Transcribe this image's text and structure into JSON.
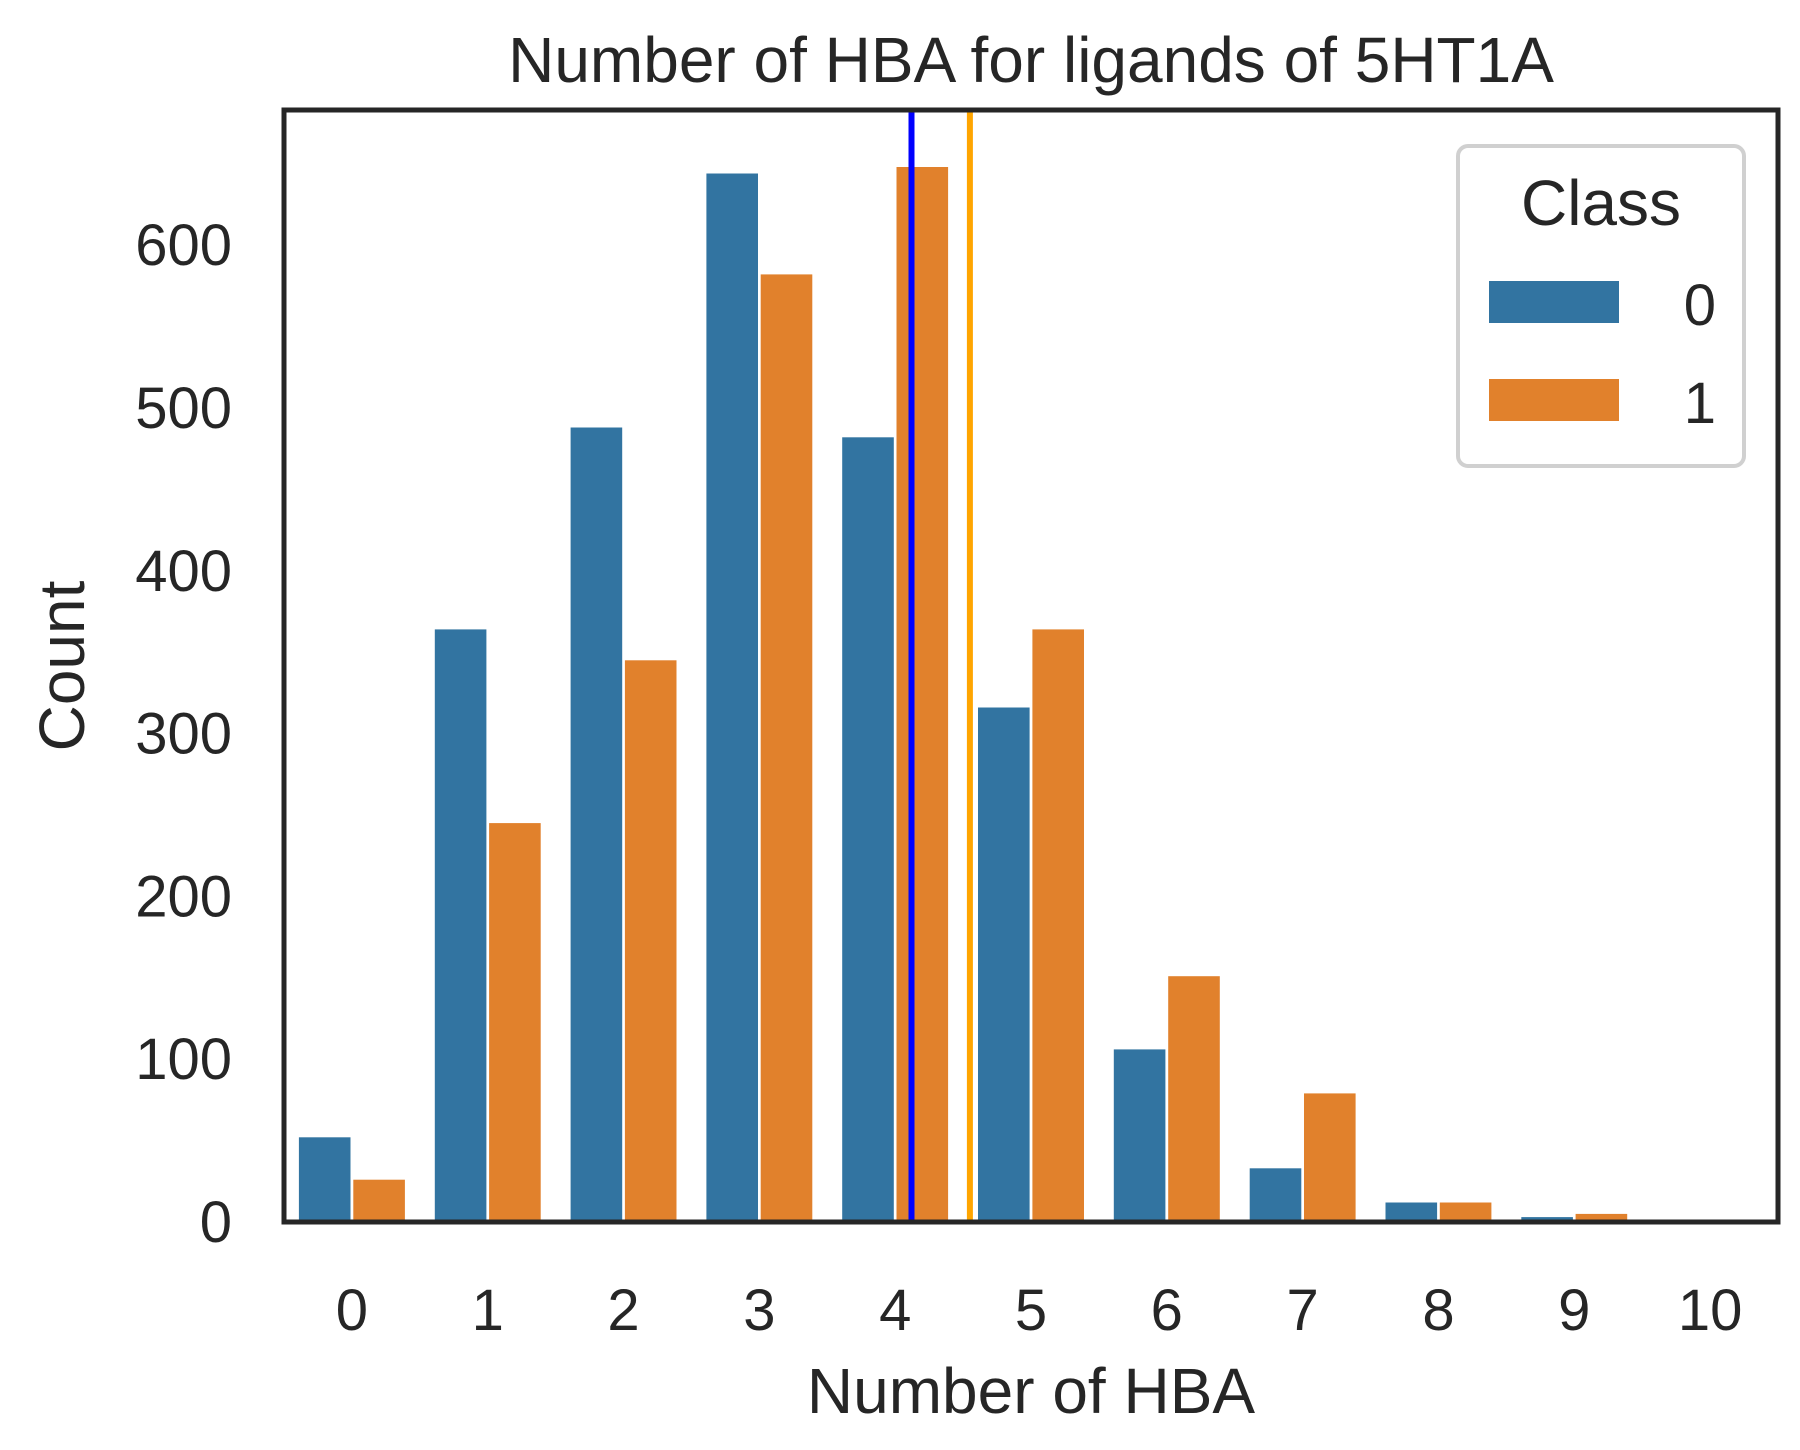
{
  "chart_data": {
    "type": "bar",
    "title": "Number of HBA for ligands of 5HT1A",
    "xlabel": "Number of HBA",
    "ylabel": "Count",
    "categories": [
      "0",
      "1",
      "2",
      "3",
      "4",
      "5",
      "6",
      "7",
      "8",
      "9",
      "10"
    ],
    "series": [
      {
        "name": "0",
        "color": "#3274a1",
        "values": [
          52,
          364,
          488,
          644,
          482,
          316,
          106,
          33,
          12,
          3,
          0
        ]
      },
      {
        "name": "1",
        "color": "#e1812c",
        "values": [
          26,
          245,
          345,
          582,
          648,
          364,
          151,
          79,
          12,
          5,
          1
        ]
      }
    ],
    "legend": {
      "title": "Class",
      "position": "top-right"
    },
    "mean_lines": [
      {
        "series": "0",
        "value": 4.12,
        "color": "#0000ff"
      },
      {
        "series": "1",
        "value": 4.55,
        "color": "#ffa500"
      }
    ],
    "yticks": [
      0,
      100,
      200,
      300,
      400,
      500,
      600
    ],
    "ylim": [
      0,
      683
    ],
    "xlim": [
      -0.5,
      10.5
    ],
    "grid": false
  }
}
